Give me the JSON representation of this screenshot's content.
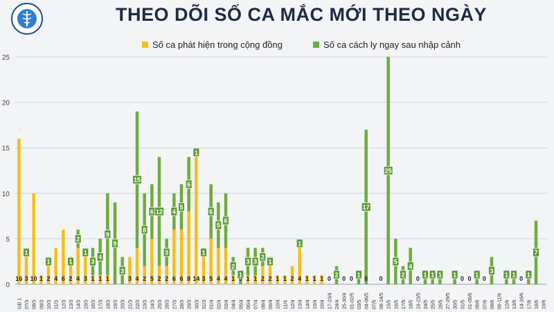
{
  "header": {
    "title": "THEO DÕI SỐ CA MẮC MỚI THEO NGÀY",
    "logo_text_top": "BỘ Y TẾ",
    "logo_text_bottom": "MINISTRY OF HEALTH"
  },
  "colors": {
    "community": "#f7bf16",
    "imported": "#6fab3e",
    "label_bg": "#5b9a33",
    "grid": "#d0d3d8",
    "title": "#1f2a44"
  },
  "chart_data": {
    "type": "bar",
    "stacked": true,
    "title": "THEO DÕI SỐ CA MẮC MỚI THEO NGÀY",
    "xlabel": "",
    "ylabel": "",
    "ylim": [
      0,
      25
    ],
    "yticks": [
      0,
      5,
      10,
      15,
      20,
      25
    ],
    "grid": true,
    "legend_position": "top",
    "categories": [
      "GĐ 1",
      "07/3",
      "08/3",
      "09/3",
      "10/3",
      "11/3",
      "12/3",
      "13/3",
      "14/3",
      "15/3",
      "16/3",
      "17/3",
      "18/3",
      "19/3",
      "20/3",
      "21/3",
      "22/3",
      "23/3",
      "24/3",
      "25/3",
      "26/3",
      "27/3",
      "28/3",
      "29/3",
      "30/3",
      "31/3",
      "01/4",
      "02/4",
      "03/4",
      "04/4",
      "05/4",
      "06/4",
      "07/4",
      "08/4",
      "09/4",
      "10/4",
      "11/4",
      "12/4",
      "13/4",
      "14/4",
      "15/4",
      "16/4",
      "17-23/4",
      "24/4",
      "25-30/4",
      "01-02/5",
      "03/5",
      "04-06/5",
      "07/5",
      "08-14/5",
      "15/5",
      "16/5",
      "17/5",
      "18/5",
      "19-23/5",
      "24/5",
      "25/5",
      "26/5",
      "27-29/5",
      "30/5",
      "31/5",
      "01-05/6",
      "06/6",
      "07/6",
      "08/6",
      "09-11/6",
      "12/6",
      "13/6",
      "14-16/6",
      "17/6",
      "18/6",
      "19/6"
    ],
    "category_labels": [
      "GĐ 1",
      "07/3",
      "08/3",
      "09/3",
      "10/3",
      "11/3",
      "12/3",
      "13/3",
      "14/3",
      "15/3",
      "16/3",
      "17/3",
      "18/3",
      "19/3",
      "20/3",
      "21/3",
      "22/3",
      "23/3",
      "24/3",
      "25/3",
      "26/3",
      "27/3",
      "28/3",
      "29/3",
      "30/3",
      "31/3",
      "01/4",
      "02/4",
      "03/4",
      "04/4",
      "05/4",
      "06/4",
      "07/4",
      "08/4",
      "09/4",
      "10/4",
      "11/4",
      "12/4",
      "13/4",
      "14/4",
      "15/4",
      "16/4",
      "17-23/4",
      "24/4",
      "25-30/4",
      "01-02/5",
      "03/5",
      "04-06/5",
      "07/5",
      "08-14/5",
      "15/5",
      "16/5",
      "17/5",
      "18/5",
      "19-23/5",
      "24/5",
      "25/5",
      "26/5",
      "27-29/5",
      "30/5",
      "31/5",
      "01-05/6",
      "06/6",
      "07/6",
      "08/6",
      "09-11/6",
      "12/6",
      "13/6",
      "14-16/6",
      "17/6",
      "18/6",
      "19/6"
    ],
    "series": [
      {
        "name": "Số ca phát hiện trong cộng đồng",
        "values": [
          16,
          3,
          10,
          1,
          2,
          4,
          6,
          2,
          4,
          3,
          1,
          1,
          1,
          0,
          0,
          3,
          4,
          2,
          5,
          2,
          2,
          6,
          6,
          8,
          14,
          3,
          5,
          4,
          4,
          1,
          0,
          1,
          1,
          2,
          2,
          1,
          1,
          2,
          4,
          1,
          1,
          1,
          0,
          0,
          0,
          0,
          0,
          0,
          0,
          0,
          0,
          0,
          0,
          0,
          0,
          0,
          0,
          0,
          0,
          0,
          0,
          0,
          0,
          0,
          0,
          0,
          0,
          0,
          0,
          0,
          0,
          0
        ],
        "labels": [
          "16",
          "3",
          "10",
          "1",
          "2",
          "4",
          "6",
          "2",
          "4",
          "3",
          "1",
          "1",
          "1",
          "",
          "",
          "3",
          "4",
          "2",
          "5",
          "2",
          "2",
          "6",
          "6",
          "8",
          "14",
          "3",
          "5",
          "4",
          "4",
          "1",
          "0",
          "1",
          "1",
          "2",
          "2",
          "1",
          "1",
          "2",
          "4",
          "1",
          "1",
          "1",
          "0",
          "",
          "0",
          "0",
          "",
          "0",
          "",
          "0",
          "",
          "",
          "",
          "",
          "0",
          "",
          "",
          "",
          "",
          "",
          "0",
          "0",
          "",
          "0",
          "",
          "",
          "",
          "",
          "0",
          "",
          "",
          ""
        ]
      },
      {
        "name": "Số ca cách ly ngay sau nhập cảnh",
        "values": [
          0,
          1,
          0,
          0,
          1,
          0,
          0,
          1,
          2,
          1,
          3,
          4,
          9,
          9,
          3,
          0,
          15,
          8,
          6,
          12,
          3,
          4,
          5,
          6,
          1,
          1,
          6,
          5,
          6,
          2,
          1,
          3,
          3,
          2,
          1,
          0,
          0,
          0,
          1,
          0,
          0,
          0,
          0,
          2,
          0,
          0,
          1,
          17,
          0,
          0,
          25,
          5,
          2,
          4,
          0,
          1,
          1,
          1,
          0,
          1,
          0,
          0,
          1,
          0,
          3,
          0,
          1,
          1,
          0,
          1,
          7,
          0
        ],
        "labels": [
          "",
          "1",
          "",
          "",
          "1",
          "",
          "",
          "1",
          "2",
          "1",
          "3",
          "4",
          "9",
          "9",
          "3",
          "",
          "15",
          "8",
          "6",
          "12",
          "3",
          "4",
          "5",
          "6",
          "1",
          "1",
          "6",
          "5",
          "6",
          "2",
          "1",
          "3",
          "3",
          "2",
          "1",
          "",
          "",
          "",
          "1",
          "",
          "",
          "",
          "",
          "2",
          "",
          "",
          "1",
          "17",
          "",
          "",
          "25",
          "5",
          "2",
          "4",
          "",
          "1",
          "1",
          "1",
          "",
          "1",
          "",
          "",
          "1",
          "",
          "3",
          "",
          "1",
          "1",
          "",
          "1",
          "7",
          ""
        ]
      }
    ]
  },
  "legend": {
    "community": "Số ca phát hiện trong cộng đồng",
    "imported": "Số ca cách ly ngay sau nhập cảnh"
  }
}
